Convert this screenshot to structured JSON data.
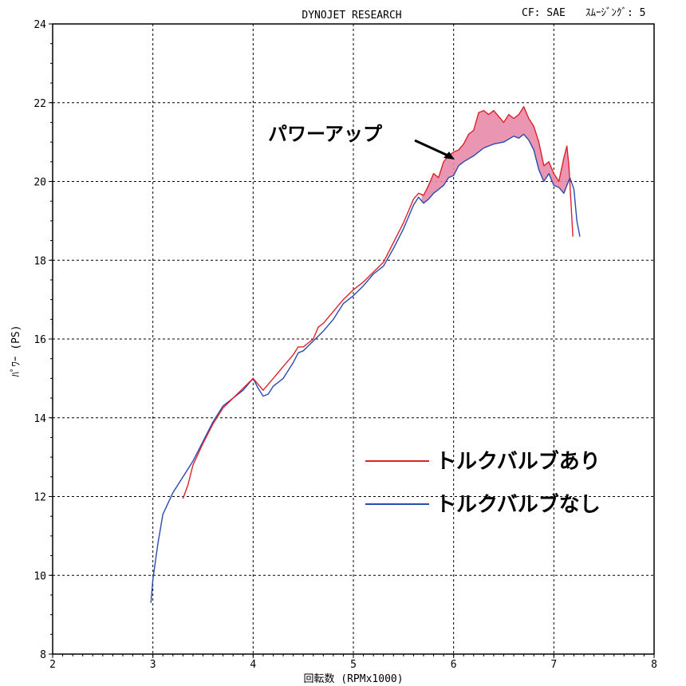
{
  "header": {
    "title": "DYNOJET RESEARCH",
    "cf": "CF: SAE",
    "smoothing": "ｽﾑｰｼﾞﾝｸﾞ: 5"
  },
  "chart_data": {
    "type": "line",
    "xlabel": "回転数 (RPMx1000)",
    "ylabel": "ﾊﾟﾜｰ (PS)",
    "xlim": [
      2,
      8
    ],
    "ylim": [
      8,
      24
    ],
    "xticks": [
      "2",
      "3",
      "4",
      "5",
      "6",
      "7",
      "8"
    ],
    "yticks": [
      "8",
      "10",
      "12",
      "14",
      "16",
      "18",
      "20",
      "22",
      "24"
    ],
    "grid": true,
    "legend_position": "center-right",
    "annotation": "パワーアップ",
    "series": [
      {
        "name": "トルクバルブあり",
        "color": "#e0202a",
        "points": [
          [
            3.3,
            11.95
          ],
          [
            3.35,
            12.3
          ],
          [
            3.4,
            12.8
          ],
          [
            3.5,
            13.35
          ],
          [
            3.6,
            13.85
          ],
          [
            3.7,
            14.25
          ],
          [
            3.8,
            14.5
          ],
          [
            3.9,
            14.75
          ],
          [
            4.0,
            15.0
          ],
          [
            4.05,
            14.85
          ],
          [
            4.1,
            14.7
          ],
          [
            4.2,
            15.0
          ],
          [
            4.3,
            15.3
          ],
          [
            4.4,
            15.6
          ],
          [
            4.45,
            15.8
          ],
          [
            4.5,
            15.8
          ],
          [
            4.6,
            16.0
          ],
          [
            4.65,
            16.3
          ],
          [
            4.7,
            16.4
          ],
          [
            4.8,
            16.7
          ],
          [
            4.9,
            17.0
          ],
          [
            5.0,
            17.25
          ],
          [
            5.1,
            17.45
          ],
          [
            5.2,
            17.7
          ],
          [
            5.3,
            17.95
          ],
          [
            5.4,
            18.45
          ],
          [
            5.5,
            18.95
          ],
          [
            5.6,
            19.55
          ],
          [
            5.65,
            19.7
          ],
          [
            5.7,
            19.65
          ],
          [
            5.75,
            19.9
          ],
          [
            5.8,
            20.2
          ],
          [
            5.85,
            20.1
          ],
          [
            5.9,
            20.5
          ],
          [
            5.95,
            20.65
          ],
          [
            6.0,
            20.75
          ],
          [
            6.05,
            20.8
          ],
          [
            6.1,
            20.95
          ],
          [
            6.15,
            21.2
          ],
          [
            6.2,
            21.3
          ],
          [
            6.25,
            21.75
          ],
          [
            6.3,
            21.8
          ],
          [
            6.35,
            21.7
          ],
          [
            6.4,
            21.8
          ],
          [
            6.45,
            21.65
          ],
          [
            6.5,
            21.5
          ],
          [
            6.55,
            21.7
          ],
          [
            6.6,
            21.6
          ],
          [
            6.65,
            21.7
          ],
          [
            6.7,
            21.9
          ],
          [
            6.75,
            21.6
          ],
          [
            6.8,
            21.4
          ],
          [
            6.85,
            21.0
          ],
          [
            6.9,
            20.4
          ],
          [
            6.95,
            20.5
          ],
          [
            7.0,
            20.2
          ],
          [
            7.05,
            20.0
          ],
          [
            7.1,
            20.6
          ],
          [
            7.13,
            20.9
          ],
          [
            7.15,
            20.4
          ],
          [
            7.17,
            19.5
          ],
          [
            7.19,
            18.6
          ]
        ]
      },
      {
        "name": "トルクバルブなし",
        "color": "#2a4ab0",
        "points": [
          [
            2.98,
            9.3
          ],
          [
            3.0,
            9.9
          ],
          [
            3.05,
            10.8
          ],
          [
            3.1,
            11.55
          ],
          [
            3.2,
            12.1
          ],
          [
            3.3,
            12.5
          ],
          [
            3.4,
            12.9
          ],
          [
            3.5,
            13.4
          ],
          [
            3.6,
            13.9
          ],
          [
            3.7,
            14.3
          ],
          [
            3.8,
            14.5
          ],
          [
            3.9,
            14.7
          ],
          [
            4.0,
            15.0
          ],
          [
            4.05,
            14.75
          ],
          [
            4.1,
            14.55
          ],
          [
            4.15,
            14.6
          ],
          [
            4.2,
            14.8
          ],
          [
            4.3,
            15.0
          ],
          [
            4.4,
            15.4
          ],
          [
            4.45,
            15.65
          ],
          [
            4.5,
            15.7
          ],
          [
            4.6,
            15.95
          ],
          [
            4.7,
            16.2
          ],
          [
            4.8,
            16.5
          ],
          [
            4.9,
            16.9
          ],
          [
            5.0,
            17.1
          ],
          [
            5.1,
            17.35
          ],
          [
            5.2,
            17.65
          ],
          [
            5.3,
            17.85
          ],
          [
            5.4,
            18.3
          ],
          [
            5.5,
            18.8
          ],
          [
            5.6,
            19.4
          ],
          [
            5.65,
            19.6
          ],
          [
            5.7,
            19.45
          ],
          [
            5.75,
            19.55
          ],
          [
            5.8,
            19.7
          ],
          [
            5.85,
            19.8
          ],
          [
            5.9,
            19.9
          ],
          [
            5.95,
            20.1
          ],
          [
            6.0,
            20.15
          ],
          [
            6.05,
            20.4
          ],
          [
            6.1,
            20.5
          ],
          [
            6.2,
            20.65
          ],
          [
            6.3,
            20.85
          ],
          [
            6.4,
            20.95
          ],
          [
            6.5,
            21.0
          ],
          [
            6.6,
            21.15
          ],
          [
            6.65,
            21.1
          ],
          [
            6.7,
            21.2
          ],
          [
            6.75,
            21.05
          ],
          [
            6.8,
            20.8
          ],
          [
            6.85,
            20.3
          ],
          [
            6.9,
            20.0
          ],
          [
            6.95,
            20.2
          ],
          [
            7.0,
            19.9
          ],
          [
            7.05,
            19.85
          ],
          [
            7.1,
            19.7
          ],
          [
            7.13,
            19.9
          ],
          [
            7.16,
            20.1
          ],
          [
            7.2,
            19.8
          ],
          [
            7.23,
            19.0
          ],
          [
            7.26,
            18.6
          ]
        ]
      }
    ]
  }
}
